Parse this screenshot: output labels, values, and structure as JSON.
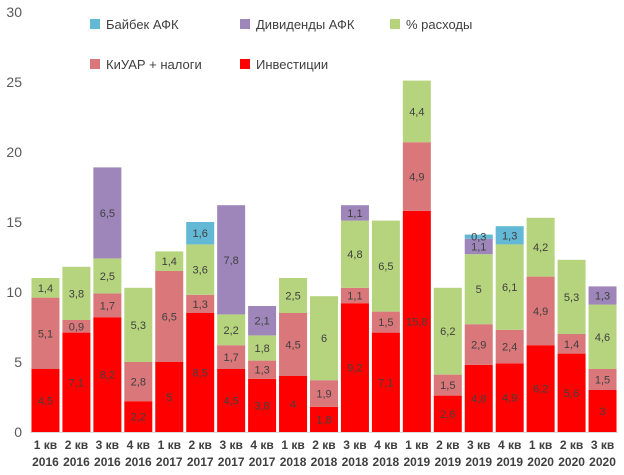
{
  "chart_data": {
    "type": "bar",
    "stacked": true,
    "ylim": [
      0,
      30
    ],
    "yticks": [
      0,
      5,
      10,
      15,
      20,
      25,
      30
    ],
    "grid": false,
    "legend_position": "top",
    "categories": [
      [
        "1 кв",
        "2016"
      ],
      [
        "2 кв",
        "2016"
      ],
      [
        "3 кв",
        "2016"
      ],
      [
        "4 кв",
        "2016"
      ],
      [
        "1 кв",
        "2017"
      ],
      [
        "2 кв",
        "2017"
      ],
      [
        "3 кв",
        "2017"
      ],
      [
        "4 кв",
        "2017"
      ],
      [
        "1 кв",
        "2018"
      ],
      [
        "2 кв",
        "2018"
      ],
      [
        "3 кв",
        "2018"
      ],
      [
        "4 кв",
        "2018"
      ],
      [
        "1 кв",
        "2019"
      ],
      [
        "2 кв",
        "2019"
      ],
      [
        "3 кв",
        "2019"
      ],
      [
        "4 кв",
        "2019"
      ],
      [
        "1 кв",
        "2020"
      ],
      [
        "2 кв",
        "2020"
      ],
      [
        "3 кв",
        "2020"
      ]
    ],
    "series": [
      {
        "name": "Инвестиции",
        "color": "#ff0000",
        "values": [
          4.5,
          7.1,
          8.2,
          2.2,
          5,
          8.5,
          4.5,
          3.8,
          4,
          1.8,
          9.2,
          7.1,
          15.8,
          2.6,
          4.8,
          4.9,
          6.2,
          5.6,
          3
        ]
      },
      {
        "name": "КиУАР + налоги",
        "color": "#d9777a",
        "values": [
          5.1,
          0.9,
          1.7,
          2.8,
          6.5,
          1.3,
          1.7,
          1.3,
          4.5,
          1.9,
          1.1,
          1.5,
          4.9,
          1.5,
          2.9,
          2.4,
          4.9,
          1.4,
          1.5
        ]
      },
      {
        "name": "% расходы",
        "color": "#b6d47d",
        "values": [
          1.4,
          3.8,
          2.5,
          5.3,
          1.4,
          3.6,
          2.2,
          1.8,
          2.5,
          6,
          4.8,
          6.5,
          4.4,
          6.2,
          5,
          6.1,
          4.2,
          5.3,
          4.6
        ]
      },
      {
        "name": "Дивиденды АФК",
        "color": "#9e86bb",
        "values": [
          null,
          null,
          6.5,
          null,
          null,
          null,
          7.8,
          2.1,
          null,
          null,
          1.1,
          null,
          null,
          null,
          1.1,
          null,
          null,
          null,
          1.3
        ]
      },
      {
        "name": "Байбек АФК",
        "color": "#62b8d5",
        "values": [
          null,
          null,
          null,
          null,
          null,
          1.6,
          null,
          null,
          null,
          null,
          null,
          null,
          null,
          null,
          0.3,
          1.3,
          null,
          null,
          null
        ]
      }
    ],
    "data_labels": [
      [
        "4,5",
        "5,1",
        "1,4",
        null,
        null
      ],
      [
        "7,1",
        "0,9",
        "3,8",
        null,
        null
      ],
      [
        "8,2",
        "1,7",
        "2,5",
        "6,5",
        null
      ],
      [
        "2,2",
        "2,8",
        "5,3",
        null,
        null
      ],
      [
        "5",
        "6,5",
        "1,4",
        null,
        null
      ],
      [
        "8,5",
        "1,3",
        "3,6",
        null,
        "1,6"
      ],
      [
        "4,5",
        "1,7",
        "2,2",
        "7,8",
        null
      ],
      [
        "3,8",
        "1,3",
        "1,8",
        "2,1",
        null
      ],
      [
        "4",
        "4,5",
        "2,5",
        null,
        null
      ],
      [
        "1,8",
        "1,9",
        "6",
        null,
        null
      ],
      [
        "9,2",
        "1,1",
        "4,8",
        "1,1",
        null
      ],
      [
        "7,1",
        "1,5",
        "6,5",
        null,
        null
      ],
      [
        "15,8",
        "4,9",
        "4,4",
        null,
        null
      ],
      [
        "2,6",
        "1,5",
        "6,2",
        null,
        null
      ],
      [
        "4,8",
        "2,9",
        "5",
        "1,1",
        "0,3"
      ],
      [
        "4,9",
        "2,4",
        "6,1",
        null,
        "1,3"
      ],
      [
        "6,2",
        "4,9",
        "4,2",
        null,
        null
      ],
      [
        "5,6",
        "1,4",
        "5,3",
        null,
        null
      ],
      [
        "3",
        "1,5",
        "4,6",
        "1,3",
        null
      ]
    ],
    "legend": [
      {
        "name": "Байбек АФК",
        "color": "#62b8d5"
      },
      {
        "name": "Дивиденды АФК",
        "color": "#9e86bb"
      },
      {
        "name": "% расходы",
        "color": "#b6d47d"
      },
      {
        "name": "КиУАР + налоги",
        "color": "#d9777a"
      },
      {
        "name": "Инвестиции",
        "color": "#ff0000"
      }
    ]
  }
}
